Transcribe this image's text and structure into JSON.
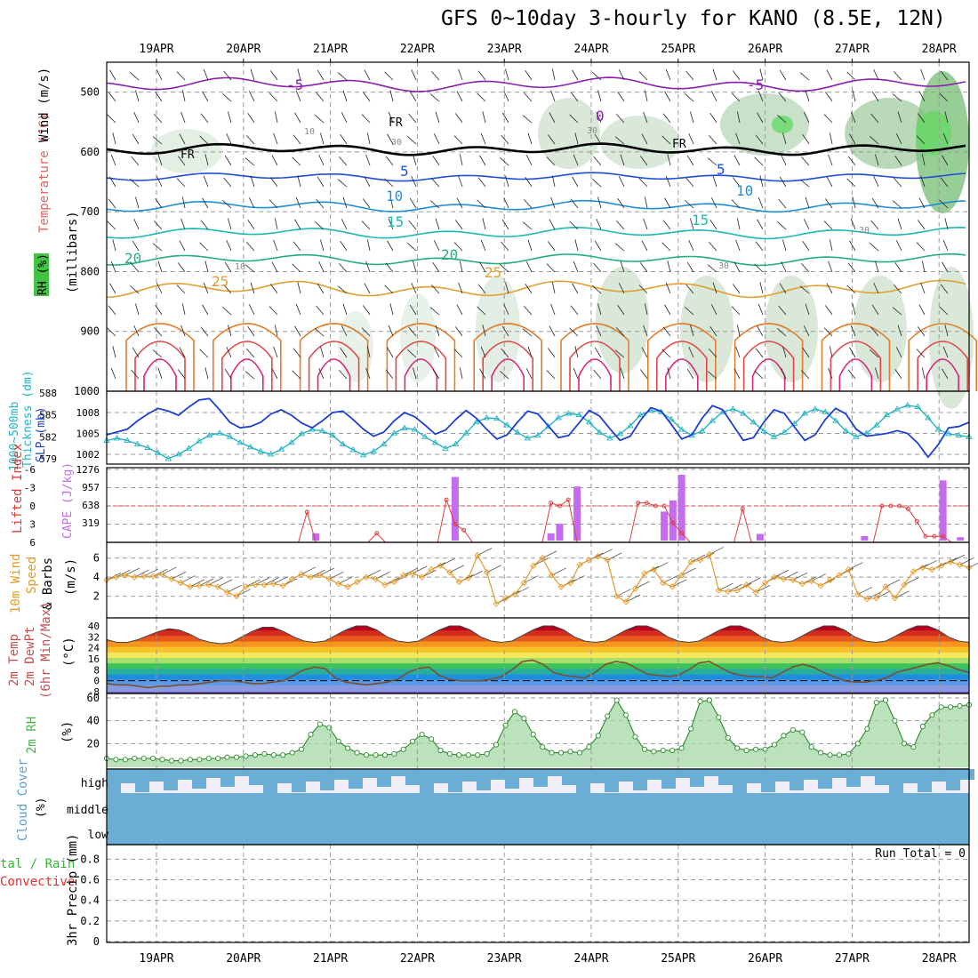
{
  "title": "GFS 0~10day 3-hourly for KANO (8.5E, 12N)",
  "date_labels": [
    "19APR",
    "20APR",
    "21APR",
    "22APR",
    "23APR",
    "24APR",
    "25APR",
    "26APR",
    "27APR",
    "28APR"
  ],
  "colors": {
    "frame": "#000000",
    "grid": "#999999",
    "slp": "#1f3fd0",
    "thick": "#26b3c3",
    "cape": "#c46cf0",
    "li": "#e03c3c",
    "wind": "#e39a2a",
    "rh": "#4ab54a",
    "cloud": "#6aaed6",
    "cloudbg": "#f0eef8",
    "precip_total": "#33b533",
    "precip_conv": "#e03030"
  },
  "panel_labels": {
    "upper_wind": "Wind (m/s)",
    "upper_temp": "Temperature (°C)",
    "upper_rh": "RH (%)",
    "upper_mb": "(millibars)",
    "thick": "Thickness (dm)",
    "thick2": "1000~500mb",
    "slp": "SLP (mb)",
    "li": "Lifted Index",
    "cape": "CAPE (J/kg)",
    "wind10a": "10m Wind",
    "wind10b": "Speed",
    "wind10c": "& Barbs",
    "wind10u": "(m/s)",
    "t2a": "2m Temp",
    "t2b": "2m DewPt",
    "t2c": "(6hr Min/Max)",
    "t2u": "(°C)",
    "rh2a": "2m RH",
    "rh2u": "(%)",
    "cloud": "Cloud Cover",
    "cloudu": "(%)",
    "precipa": "tal / Rain",
    "precipb": "Convective",
    "precipc": "3hr Precip (mm)",
    "run_total": "Run Total = 0"
  },
  "upper_ticks": [
    "500",
    "600",
    "700",
    "800",
    "900",
    "1000"
  ],
  "contour_labels": {
    "m5": "-5",
    "zero": "0",
    "fr": "FR",
    "c5": "5",
    "c10": "10",
    "c15": "15",
    "c20": "20",
    "c25": "25",
    "rh10": "10",
    "rh30": "30"
  },
  "thick_ticks": [
    "588",
    "585",
    "582",
    "579"
  ],
  "slp_ticks": [
    "1008",
    "1005",
    "1002"
  ],
  "li_ticks": [
    "-6",
    "-3",
    "0",
    "3",
    "6"
  ],
  "cape_ticks": [
    "1276",
    "957",
    "638",
    "319"
  ],
  "wind_ticks": [
    "6",
    "4",
    "2"
  ],
  "temp_ticks": [
    "40",
    "32",
    "24",
    "16",
    "8",
    "0",
    "-8"
  ],
  "rh2_ticks": [
    "60",
    "40",
    "20"
  ],
  "cloud_levels": [
    "high",
    "middle",
    "low"
  ],
  "precip_ticks": [
    "0.8",
    "0.6",
    "0.4",
    "0.2",
    "0"
  ],
  "chart_data": {
    "type": "meteogram",
    "title": "GFS 0~10day 3-hourly for KANO (8.5E, 12N)",
    "x_start": "18APR 12Z",
    "x_step_hours": 3,
    "slp_mb": [
      1004.8,
      1005.2,
      1005.6,
      1006.8,
      1007.8,
      1008.6,
      1008.2,
      1007.6,
      1008.8,
      1009.8,
      1010.0,
      1008.4,
      1006.6,
      1005.8,
      1006.0,
      1006.6,
      1007.8,
      1008.4,
      1007.6,
      1006.5,
      1005.8,
      1006.8,
      1008.0,
      1008.2,
      1007.0,
      1005.6,
      1004.6,
      1005.2,
      1006.8,
      1008.0,
      1007.4,
      1006.2,
      1004.9,
      1005.5,
      1007.0,
      1008.3,
      1007.2,
      1005.6,
      1004.2,
      1004.8,
      1006.6,
      1008.2,
      1007.8,
      1006.1,
      1004.4,
      1004.7,
      1006.5,
      1008.3,
      1007.5,
      1005.7,
      1004.0,
      1004.6,
      1006.9,
      1008.7,
      1008.2,
      1006.3,
      1004.2,
      1004.8,
      1007.2,
      1009.0,
      1008.4,
      1006.2,
      1004.0,
      1004.4,
      1006.6,
      1008.4,
      1007.9,
      1005.9,
      1004.0,
      1004.8,
      1007.0,
      1008.6,
      1007.8,
      1005.6,
      1004.6,
      1004.8,
      1005.0,
      1005.4,
      1005.0,
      1003.6,
      1001.6,
      1003.4,
      1005.8,
      1006.0,
      1006.6
    ],
    "thickness_dm": [
      581.5,
      581.8,
      581.5,
      581.0,
      580.5,
      579.8,
      579.0,
      579.6,
      580.4,
      581.4,
      582.2,
      582.5,
      582.0,
      581.2,
      580.6,
      580.0,
      579.6,
      580.3,
      581.2,
      582.4,
      583.0,
      582.8,
      582.2,
      581.0,
      580.2,
      579.5,
      580.0,
      581.0,
      582.5,
      583.2,
      583.0,
      582.0,
      581.2,
      580.4,
      581.0,
      582.5,
      584.0,
      584.6,
      584.5,
      583.6,
      582.6,
      581.8,
      582.2,
      583.4,
      584.6,
      585.2,
      585.0,
      584.0,
      582.6,
      581.8,
      582.4,
      583.5,
      585.0,
      585.6,
      585.4,
      584.4,
      583.0,
      582.2,
      582.8,
      584.2,
      585.4,
      585.8,
      585.2,
      584.0,
      582.8,
      582.0,
      582.6,
      583.8,
      585.2,
      585.8,
      585.4,
      584.2,
      582.8,
      582.0,
      582.5,
      583.6,
      585.0,
      585.8,
      586.3,
      586.1,
      584.6,
      583.0,
      582.4,
      582.2,
      582.0
    ],
    "lifted_index": [
      6,
      6,
      6,
      6,
      6,
      6,
      6,
      6,
      6,
      6,
      6,
      6,
      6,
      6,
      6,
      6,
      6,
      6,
      6,
      6,
      6,
      6,
      6,
      1,
      6,
      6,
      6,
      6,
      6,
      6,
      6,
      4.5,
      6,
      6,
      6,
      6,
      6,
      6,
      6,
      -1,
      3,
      4,
      6,
      6,
      6,
      6,
      6,
      6,
      6,
      6,
      6,
      -0.5,
      0,
      -1,
      6,
      6,
      6,
      6,
      6,
      6,
      6,
      -0.5,
      -0.5,
      0,
      0,
      2.8,
      4.5,
      6,
      6,
      6,
      6,
      6,
      6,
      0.5,
      6,
      6,
      6,
      6,
      6,
      6,
      6,
      6,
      6,
      6,
      6,
      6,
      6,
      6,
      6,
      0,
      0,
      0,
      0.5,
      2.5,
      5,
      5,
      5,
      6,
      6,
      6
    ],
    "cape_jkg": [
      0,
      0,
      0,
      0,
      0,
      0,
      0,
      0,
      0,
      0,
      0,
      0,
      0,
      0,
      0,
      0,
      0,
      0,
      0,
      0,
      0,
      0,
      0,
      0,
      130,
      0,
      0,
      0,
      0,
      0,
      0,
      0,
      0,
      0,
      0,
      0,
      0,
      0,
      0,
      0,
      1140,
      0,
      0,
      0,
      0,
      0,
      0,
      0,
      0,
      0,
      0,
      130,
      300,
      0,
      970,
      0,
      0,
      0,
      0,
      0,
      0,
      0,
      0,
      0,
      520,
      720,
      1180,
      0,
      0,
      0,
      0,
      0,
      0,
      0,
      0,
      120,
      0,
      0,
      0,
      0,
      0,
      0,
      0,
      0,
      0,
      0,
      0,
      80,
      0,
      0,
      0,
      0,
      0,
      0,
      0,
      0,
      1080,
      0,
      60,
      0
    ],
    "wind10_ms": [
      3.7,
      4.0,
      4.2,
      4.0,
      4.1,
      4.1,
      4.3,
      3.8,
      3.4,
      3.0,
      3.1,
      3.2,
      3.0,
      2.4,
      2.0,
      3.0,
      3.2,
      3.2,
      3.3,
      3.1,
      3.8,
      4.3,
      4.0,
      4.2,
      3.8,
      3.3,
      3.0,
      3.5,
      4.0,
      3.8,
      3.2,
      3.5,
      4.2,
      4.4,
      4.0,
      4.8,
      5.2,
      4.5,
      3.5,
      3.9,
      6.3,
      4.5,
      1.2,
      1.8,
      2.2,
      3.4,
      5.2,
      6.0,
      4.2,
      3.0,
      3.4,
      5.3,
      5.8,
      6.2,
      5.8,
      2.0,
      1.4,
      2.8,
      4.4,
      4.8,
      3.4,
      3.0,
      4.2,
      5.6,
      5.8,
      6.4,
      2.6,
      2.5,
      2.6,
      3.2,
      2.4,
      3.4,
      4.0,
      3.8,
      3.7,
      3.3,
      3.6,
      3.1,
      3.7,
      4.2,
      4.8,
      2.2,
      1.7,
      1.8,
      3.0,
      1.8,
      3.2,
      4.6,
      5.0,
      4.8,
      5.2,
      5.6,
      5.3,
      5.0
    ],
    "temp2m_c": [
      30,
      28,
      28,
      30,
      33,
      36,
      38,
      37,
      34,
      30,
      28,
      27,
      28,
      32,
      36,
      39,
      39,
      36,
      32,
      29,
      28,
      29,
      33,
      37,
      40,
      40,
      37,
      32,
      29,
      28,
      29,
      33,
      37,
      40,
      40,
      37,
      32,
      29,
      28,
      29,
      33,
      37,
      40,
      40,
      37,
      32,
      29,
      28,
      29,
      33,
      37,
      40,
      40,
      37,
      32,
      29,
      28,
      29,
      33,
      37,
      40,
      40,
      37,
      32,
      29,
      28,
      29,
      33,
      37,
      40,
      40,
      37,
      32,
      29,
      28,
      29,
      33,
      37,
      40,
      40,
      37,
      32,
      29,
      28
    ],
    "dewpt2m_c": [
      -2,
      -3,
      -3,
      -4,
      -5,
      -4,
      -4,
      -3,
      -3,
      -2,
      -1,
      0,
      0,
      -1,
      -2,
      -2,
      -1,
      0,
      4,
      8,
      10,
      9,
      2,
      -1,
      -2,
      -3,
      -2,
      -1,
      1,
      6,
      9,
      10,
      4,
      1,
      0,
      0,
      0,
      1,
      3,
      8,
      14,
      15,
      12,
      6,
      4,
      3,
      2,
      6,
      12,
      14,
      13,
      9,
      5,
      4,
      3,
      4,
      8,
      13,
      14,
      10,
      6,
      4,
      3,
      3,
      2,
      6,
      10,
      12,
      10,
      6,
      3,
      0,
      -1,
      -1,
      0,
      2,
      6,
      8,
      10,
      12,
      13,
      11,
      8,
      6
    ],
    "rh2m_pct": [
      7,
      6,
      6,
      7,
      7,
      7,
      6,
      5,
      5,
      6,
      6,
      7,
      7,
      8,
      8,
      9,
      10,
      11,
      10,
      10,
      12,
      15,
      28,
      37,
      34,
      22,
      16,
      12,
      10,
      10,
      10,
      11,
      15,
      22,
      28,
      24,
      14,
      11,
      10,
      10,
      10,
      11,
      19,
      36,
      48,
      42,
      28,
      17,
      12,
      12,
      13,
      12,
      17,
      27,
      44,
      58,
      45,
      26,
      15,
      13,
      14,
      14,
      16,
      33,
      57,
      58,
      43,
      25,
      16,
      14,
      15,
      15,
      19,
      27,
      32,
      30,
      17,
      12,
      10,
      10,
      11,
      20,
      33,
      56,
      58,
      40,
      20,
      17,
      35,
      45,
      52,
      52,
      53,
      54
    ],
    "precip_total_mm": 0,
    "precip_conv_mm": 0
  }
}
